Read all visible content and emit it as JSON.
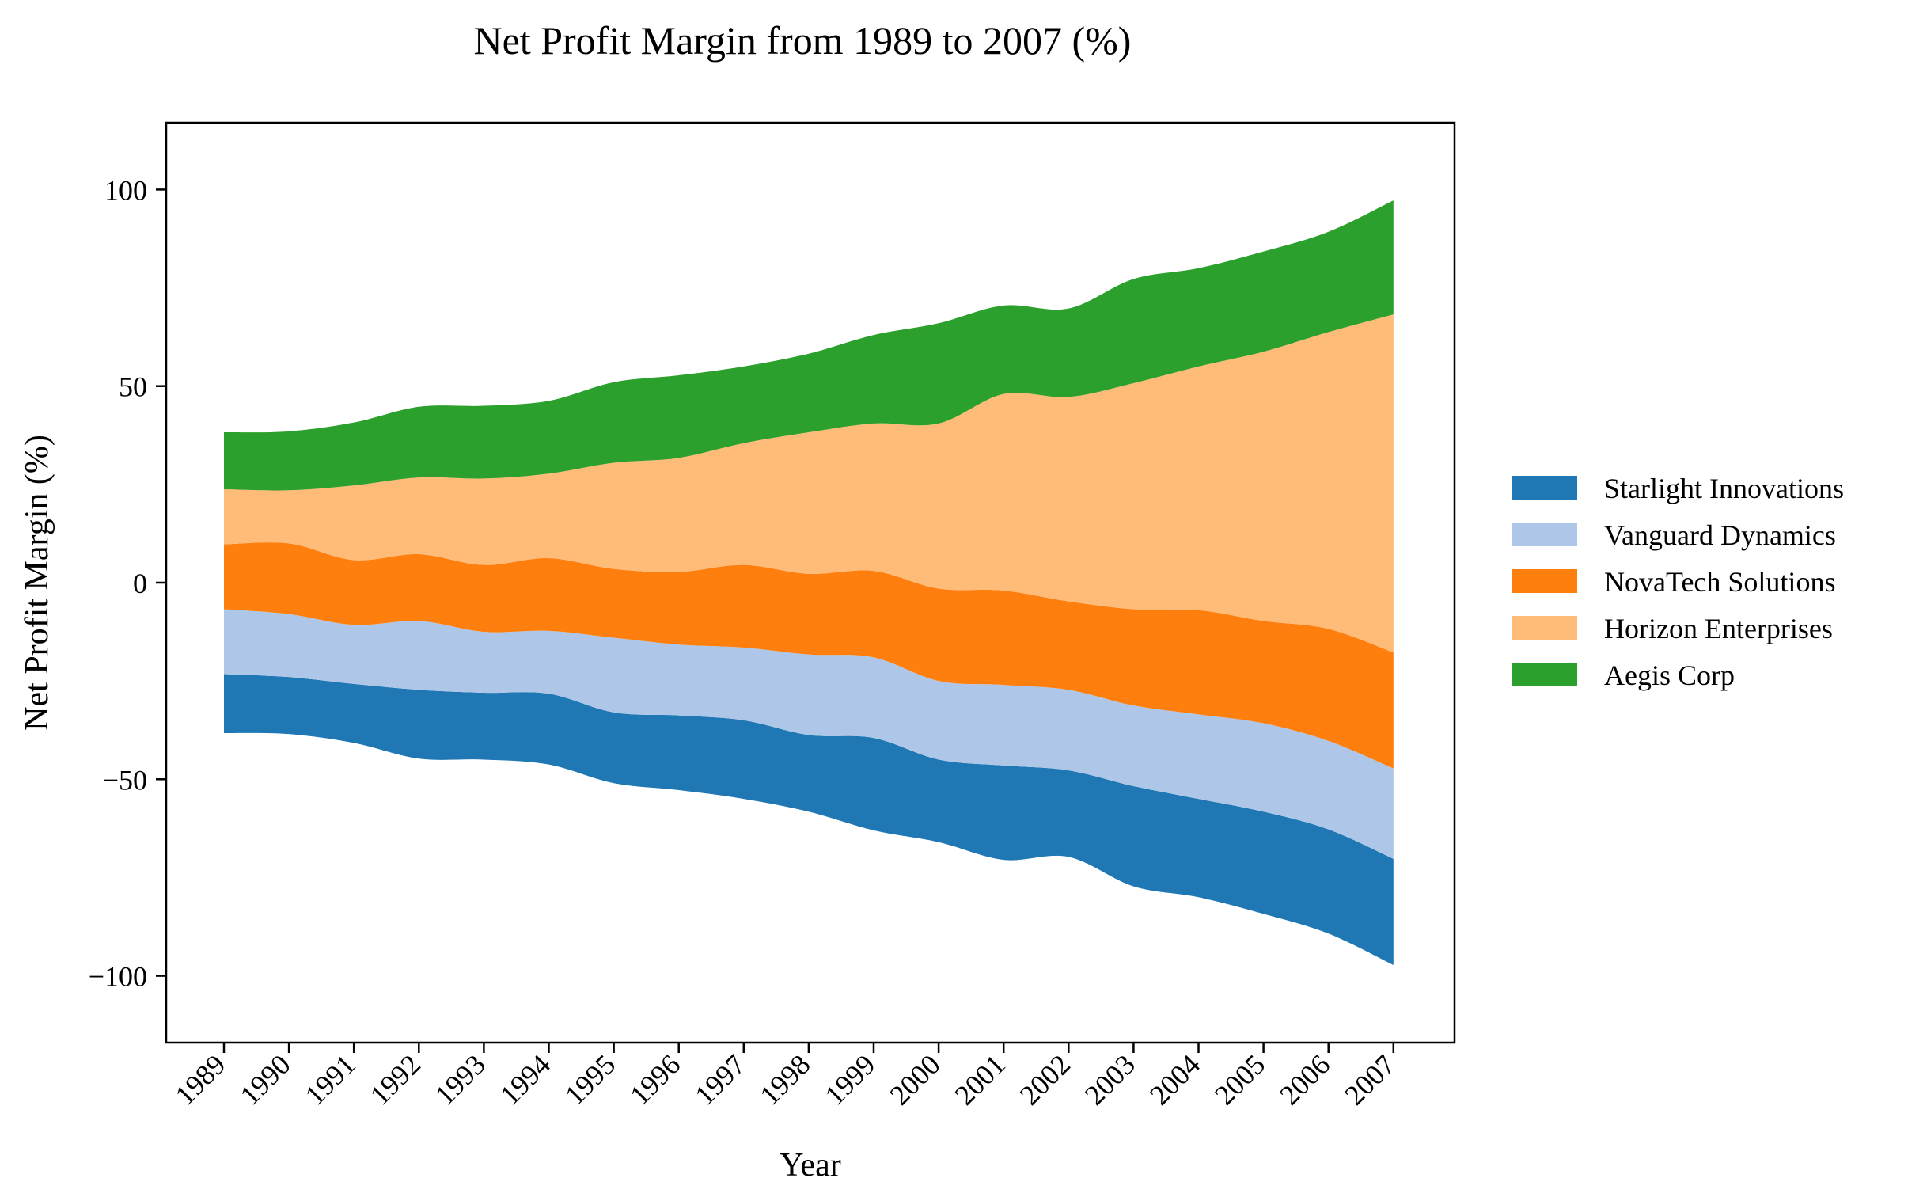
{
  "chart_data": {
    "type": "area",
    "layout": "streamgraph (symmetric baseline)",
    "title": "Net Profit Margin from 1989 to 2007 (%)",
    "xlabel": "Year",
    "ylabel": "Net Profit Margin (%)",
    "ylim": [
      -117,
      117
    ],
    "yticks": [
      -100,
      -50,
      0,
      50,
      100
    ],
    "ytick_labels": [
      "−100",
      "−50",
      "0",
      "50",
      "100"
    ],
    "grid": false,
    "legend_position": "right",
    "categories": [
      "1989",
      "1990",
      "1991",
      "1992",
      "1993",
      "1994",
      "1995",
      "1996",
      "1997",
      "1998",
      "1999",
      "2000",
      "2001",
      "2002",
      "2003",
      "2004",
      "2005",
      "2006",
      "2007"
    ],
    "series": [
      {
        "name": "Starlight Innovations",
        "color": "#1f77b4",
        "values": [
          15.0,
          14.5,
          15.0,
          17.5,
          17.0,
          18.0,
          18.0,
          19.0,
          20.0,
          19.5,
          23.5,
          21.0,
          24.0,
          22.0,
          25.5,
          25.0,
          26.0,
          26.5,
          27.0
        ]
      },
      {
        "name": "Vanguard Dynamics",
        "color": "#aec7e8",
        "values": [
          16.5,
          16.0,
          15.0,
          17.5,
          15.5,
          16.0,
          19.0,
          18.0,
          18.5,
          20.5,
          20.5,
          20.0,
          20.5,
          20.5,
          20.5,
          21.5,
          22.5,
          22.5,
          23.0
        ]
      },
      {
        "name": "NovaTech Solutions",
        "color": "#ff7f0e",
        "values": [
          16.5,
          18.0,
          16.5,
          17.0,
          17.0,
          18.5,
          17.5,
          18.5,
          21.0,
          20.5,
          22.0,
          23.5,
          24.0,
          22.5,
          24.5,
          26.5,
          26.0,
          28.5,
          29.5
        ]
      },
      {
        "name": "Horizon Enterprises",
        "color": "#ffbb78",
        "values": [
          14.0,
          13.5,
          19.0,
          19.5,
          22.0,
          21.5,
          27.0,
          29.0,
          31.0,
          36.0,
          37.5,
          42.0,
          50.0,
          52.0,
          57.5,
          62.0,
          68.5,
          75.5,
          86.0
        ]
      },
      {
        "name": "Aegis Corp",
        "color": "#2ca02c",
        "values": [
          14.5,
          15.0,
          16.0,
          18.0,
          18.5,
          18.5,
          20.5,
          21.0,
          19.5,
          20.0,
          22.5,
          25.5,
          22.5,
          22.5,
          26.5,
          25.0,
          25.5,
          25.5,
          29.0
        ]
      }
    ]
  }
}
